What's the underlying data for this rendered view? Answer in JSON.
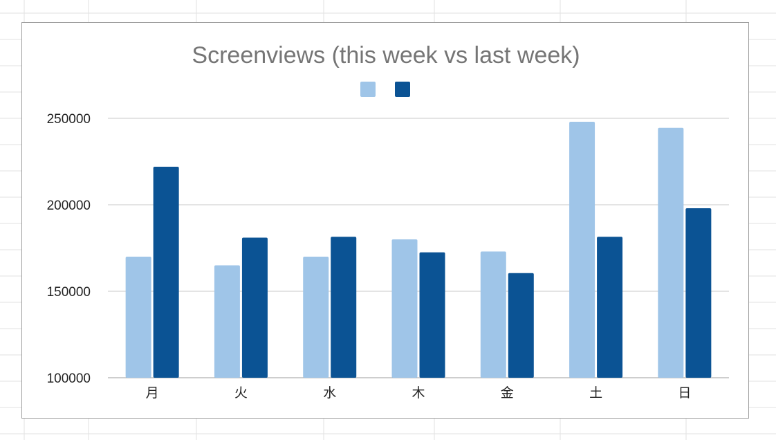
{
  "chart_data": {
    "type": "bar",
    "title": "Screenviews (this week vs last week)",
    "xlabel": "",
    "ylabel": "",
    "categories": [
      "月",
      "火",
      "水",
      "木",
      "金",
      "土",
      "日"
    ],
    "series": [
      {
        "color": "#9fc5e8",
        "values": [
          170000,
          165000,
          170000,
          180000,
          173000,
          248000,
          244500
        ]
      },
      {
        "color": "#0b5394",
        "values": [
          222000,
          181000,
          181500,
          172500,
          160500,
          181500,
          198000
        ]
      }
    ],
    "ylim": [
      100000,
      250000
    ],
    "yticks": [
      "100000",
      "150000",
      "200000",
      "250000"
    ],
    "grid": true,
    "legend": "top-center"
  }
}
